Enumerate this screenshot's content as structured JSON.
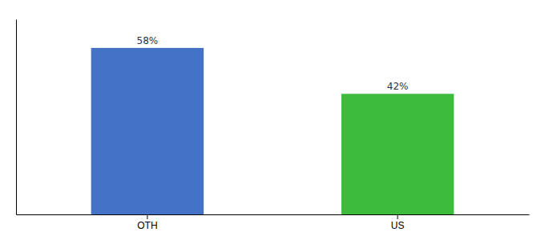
{
  "chart_data": {
    "type": "bar",
    "categories": [
      "OTH",
      "US"
    ],
    "values": [
      58,
      42
    ],
    "value_labels": [
      "58%",
      "42%"
    ],
    "colors": [
      "#4472c4",
      "#3dbb3d"
    ],
    "ylim": [
      0,
      68
    ],
    "yticks": [],
    "grid": false,
    "data_labels": true,
    "tick_labels": "x"
  }
}
